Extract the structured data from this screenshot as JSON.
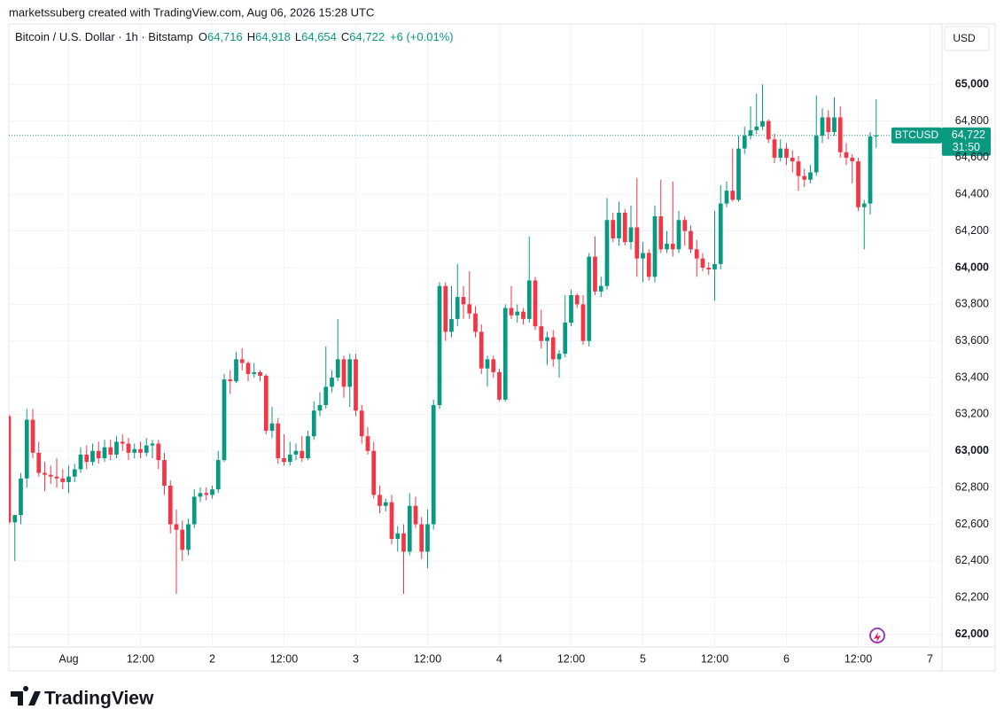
{
  "header": {
    "credit": "marketssuberg created with TradingView.com, Aug 06, 2026 15:28 UTC",
    "symbol": "Bitcoin / U.S. Dollar · 1h · Bitstamp",
    "o_key": "O",
    "o": "64,716",
    "h_key": "H",
    "h": "64,918",
    "l_key": "L",
    "l": "64,654",
    "c_key": "C",
    "c": "64,722",
    "change": "+6 (+0.01%)",
    "currency": "USD"
  },
  "price_tag": {
    "ticker": "BTCUSD",
    "price": "64,722",
    "countdown": "31:50"
  },
  "footer": {
    "brand": "TradingView"
  },
  "chart_data": {
    "type": "candlestick",
    "up_color": "#089981",
    "down_color": "#f23645",
    "grid": true,
    "xlim": [
      0,
      156
    ],
    "ylim": [
      61930,
      65330
    ],
    "xticks": [
      {
        "value": 10,
        "label": "Aug"
      },
      {
        "value": 22,
        "label": "12:00"
      },
      {
        "value": 34,
        "label": "2"
      },
      {
        "value": 46,
        "label": "12:00"
      },
      {
        "value": 58,
        "label": "3"
      },
      {
        "value": 70,
        "label": "12:00"
      },
      {
        "value": 82,
        "label": "4"
      },
      {
        "value": 94,
        "label": "12:00"
      },
      {
        "value": 106,
        "label": "5"
      },
      {
        "value": 118,
        "label": "12:00"
      },
      {
        "value": 130,
        "label": "6"
      },
      {
        "value": 142,
        "label": "12:00"
      },
      {
        "value": 154,
        "label": "7"
      }
    ],
    "yticks": [
      {
        "value": 62000,
        "label": "62,000"
      },
      {
        "value": 62200,
        "label": "62,200"
      },
      {
        "value": 62400,
        "label": "62,400"
      },
      {
        "value": 62600,
        "label": "62,600"
      },
      {
        "value": 62800,
        "label": "62,800"
      },
      {
        "value": 63000,
        "label": "63,000"
      },
      {
        "value": 63200,
        "label": "63,200"
      },
      {
        "value": 63400,
        "label": "63,400"
      },
      {
        "value": 63600,
        "label": "63,600"
      },
      {
        "value": 63800,
        "label": "63,800"
      },
      {
        "value": 64000,
        "label": "64,000"
      },
      {
        "value": 64200,
        "label": "64,200"
      },
      {
        "value": 64400,
        "label": "64,400"
      },
      {
        "value": 64600,
        "label": "64,600"
      },
      {
        "value": 64800,
        "label": "64,800"
      },
      {
        "value": 65000,
        "label": "65,000"
      }
    ],
    "candles": [
      [
        63190,
        63200,
        62600,
        62610
      ],
      [
        62610,
        62650,
        62400,
        62650
      ],
      [
        62650,
        62880,
        62600,
        62850
      ],
      [
        62850,
        63230,
        62800,
        63170
      ],
      [
        63170,
        63230,
        62960,
        62990
      ],
      [
        62990,
        63050,
        62860,
        62880
      ],
      [
        62880,
        62940,
        62780,
        62870
      ],
      [
        62870,
        62920,
        62820,
        62860
      ],
      [
        62860,
        62960,
        62800,
        62850
      ],
      [
        62850,
        62900,
        62790,
        62830
      ],
      [
        62830,
        62920,
        62770,
        62860
      ],
      [
        62860,
        62930,
        62830,
        62900
      ],
      [
        62900,
        63020,
        62880,
        62980
      ],
      [
        62980,
        63030,
        62900,
        62940
      ],
      [
        62940,
        63040,
        62920,
        63000
      ],
      [
        63000,
        63050,
        62930,
        62960
      ],
      [
        62960,
        63060,
        62940,
        63020
      ],
      [
        63020,
        63060,
        62950,
        62980
      ],
      [
        62980,
        63080,
        62960,
        63050
      ],
      [
        63050,
        63090,
        63000,
        63040
      ],
      [
        63040,
        63070,
        62950,
        62990
      ],
      [
        62990,
        63040,
        62960,
        63010
      ],
      [
        63010,
        63050,
        62960,
        62990
      ],
      [
        62990,
        63070,
        62970,
        63030
      ],
      [
        63030,
        63060,
        62960,
        63040
      ],
      [
        63040,
        63060,
        62900,
        62950
      ],
      [
        62950,
        62990,
        62760,
        62810
      ],
      [
        62810,
        62840,
        62550,
        62600
      ],
      [
        62600,
        62680,
        62220,
        62570
      ],
      [
        62570,
        62620,
        62400,
        62460
      ],
      [
        62460,
        62630,
        62430,
        62600
      ],
      [
        62600,
        62790,
        62580,
        62750
      ],
      [
        62750,
        62800,
        62720,
        62770
      ],
      [
        62770,
        62800,
        62730,
        62760
      ],
      [
        62760,
        62810,
        62740,
        62790
      ],
      [
        62790,
        63000,
        62770,
        62950
      ],
      [
        62950,
        63420,
        62940,
        63390
      ],
      [
        63390,
        63440,
        63310,
        63380
      ],
      [
        63380,
        63540,
        63370,
        63500
      ],
      [
        63500,
        63560,
        63440,
        63480
      ],
      [
        63480,
        63490,
        63380,
        63420
      ],
      [
        63420,
        63480,
        63400,
        63430
      ],
      [
        63430,
        63440,
        63380,
        63410
      ],
      [
        63410,
        63420,
        63090,
        63110
      ],
      [
        63110,
        63240,
        63070,
        63150
      ],
      [
        63150,
        63180,
        62930,
        62960
      ],
      [
        62960,
        63090,
        62920,
        62940
      ],
      [
        62940,
        63050,
        62920,
        62980
      ],
      [
        62980,
        63040,
        62950,
        63000
      ],
      [
        63000,
        63080,
        62940,
        62960
      ],
      [
        62960,
        63110,
        62950,
        63080
      ],
      [
        63080,
        63270,
        63060,
        63220
      ],
      [
        63220,
        63320,
        63190,
        63250
      ],
      [
        63250,
        63570,
        63230,
        63350
      ],
      [
        63350,
        63440,
        63320,
        63400
      ],
      [
        63400,
        63720,
        63380,
        63500
      ],
      [
        63500,
        63520,
        63290,
        63350
      ],
      [
        63350,
        63530,
        63240,
        63500
      ],
      [
        63500,
        63530,
        63190,
        63220
      ],
      [
        63220,
        63250,
        63040,
        63080
      ],
      [
        63080,
        63130,
        62980,
        63000
      ],
      [
        63000,
        63050,
        62740,
        62760
      ],
      [
        62760,
        62810,
        62660,
        62700
      ],
      [
        62700,
        62740,
        62670,
        62720
      ],
      [
        62720,
        62760,
        62490,
        62520
      ],
      [
        62520,
        62590,
        62450,
        62550
      ],
      [
        62550,
        62600,
        62220,
        62450
      ],
      [
        62450,
        62770,
        62430,
        62700
      ],
      [
        62700,
        62750,
        62580,
        62600
      ],
      [
        62600,
        62640,
        62410,
        62450
      ],
      [
        62450,
        62680,
        62360,
        62600
      ],
      [
        62600,
        63280,
        62570,
        63250
      ],
      [
        63250,
        63920,
        63230,
        63900
      ],
      [
        63900,
        63920,
        63600,
        63650
      ],
      [
        63650,
        63900,
        63620,
        63720
      ],
      [
        63720,
        64020,
        63680,
        63840
      ],
      [
        63840,
        63900,
        63720,
        63800
      ],
      [
        63800,
        63980,
        63720,
        63750
      ],
      [
        63750,
        63790,
        63620,
        63650
      ],
      [
        63650,
        63690,
        63420,
        63450
      ],
      [
        63450,
        63520,
        63350,
        63500
      ],
      [
        63500,
        63520,
        63400,
        63430
      ],
      [
        63430,
        63450,
        63270,
        63280
      ],
      [
        63280,
        63800,
        63270,
        63780
      ],
      [
        63780,
        63900,
        63720,
        63740
      ],
      [
        63740,
        63800,
        63700,
        63760
      ],
      [
        63760,
        63780,
        63690,
        63720
      ],
      [
        63720,
        64170,
        63700,
        63930
      ],
      [
        63930,
        63950,
        63660,
        63680
      ],
      [
        63680,
        63770,
        63560,
        63600
      ],
      [
        63600,
        63650,
        63470,
        63620
      ],
      [
        63620,
        63660,
        63460,
        63500
      ],
      [
        63500,
        63550,
        63400,
        63530
      ],
      [
        63530,
        63850,
        63510,
        63700
      ],
      [
        63700,
        63880,
        63680,
        63850
      ],
      [
        63850,
        63860,
        63780,
        63800
      ],
      [
        63800,
        63850,
        63580,
        63600
      ],
      [
        63600,
        64080,
        63570,
        64060
      ],
      [
        64060,
        64170,
        63850,
        63870
      ],
      [
        63870,
        63950,
        63840,
        63900
      ],
      [
        63900,
        64380,
        63880,
        64260
      ],
      [
        64260,
        64300,
        64140,
        64160
      ],
      [
        64160,
        64360,
        64120,
        64300
      ],
      [
        64300,
        64320,
        64120,
        64140
      ],
      [
        64140,
        64340,
        64100,
        64220
      ],
      [
        64220,
        64490,
        63950,
        64050
      ],
      [
        64050,
        64140,
        63920,
        64080
      ],
      [
        64080,
        64100,
        63930,
        63950
      ],
      [
        63950,
        64340,
        63920,
        64280
      ],
      [
        64280,
        64480,
        64080,
        64100
      ],
      [
        64100,
        64200,
        64080,
        64130
      ],
      [
        64130,
        64470,
        64060,
        64100
      ],
      [
        64100,
        64310,
        64080,
        64260
      ],
      [
        64260,
        64280,
        64120,
        64200
      ],
      [
        64200,
        64230,
        64080,
        64100
      ],
      [
        64100,
        64150,
        63950,
        64050
      ],
      [
        64050,
        64080,
        63980,
        64000
      ],
      [
        64000,
        64030,
        63960,
        63990
      ],
      [
        63990,
        64310,
        63820,
        64020
      ],
      [
        64020,
        64450,
        63990,
        64350
      ],
      [
        64350,
        64470,
        64330,
        64420
      ],
      [
        64420,
        64650,
        64360,
        64370
      ],
      [
        64370,
        64720,
        64360,
        64650
      ],
      [
        64650,
        64770,
        64620,
        64720
      ],
      [
        64720,
        64880,
        64700,
        64750
      ],
      [
        64750,
        64950,
        64730,
        64770
      ],
      [
        64770,
        65000,
        64750,
        64800
      ],
      [
        64800,
        64810,
        64680,
        64700
      ],
      [
        64700,
        64730,
        64570,
        64600
      ],
      [
        64600,
        64700,
        64580,
        64650
      ],
      [
        64650,
        64680,
        64560,
        64600
      ],
      [
        64600,
        64640,
        64520,
        64580
      ],
      [
        64580,
        64610,
        64420,
        64500
      ],
      [
        64500,
        64540,
        64440,
        64480
      ],
      [
        64480,
        64560,
        64460,
        64520
      ],
      [
        64520,
        64940,
        64500,
        64720
      ],
      [
        64720,
        64870,
        64680,
        64820
      ],
      [
        64820,
        64860,
        64700,
        64740
      ],
      [
        64740,
        64930,
        64720,
        64820
      ],
      [
        64820,
        64880,
        64600,
        64630
      ],
      [
        64630,
        64680,
        64560,
        64600
      ],
      [
        64600,
        64620,
        64460,
        64580
      ],
      [
        64580,
        64600,
        64310,
        64330
      ],
      [
        64330,
        64370,
        64100,
        64350
      ],
      [
        64350,
        64740,
        64290,
        64716
      ],
      [
        64716,
        64918,
        64654,
        64722
      ]
    ]
  }
}
